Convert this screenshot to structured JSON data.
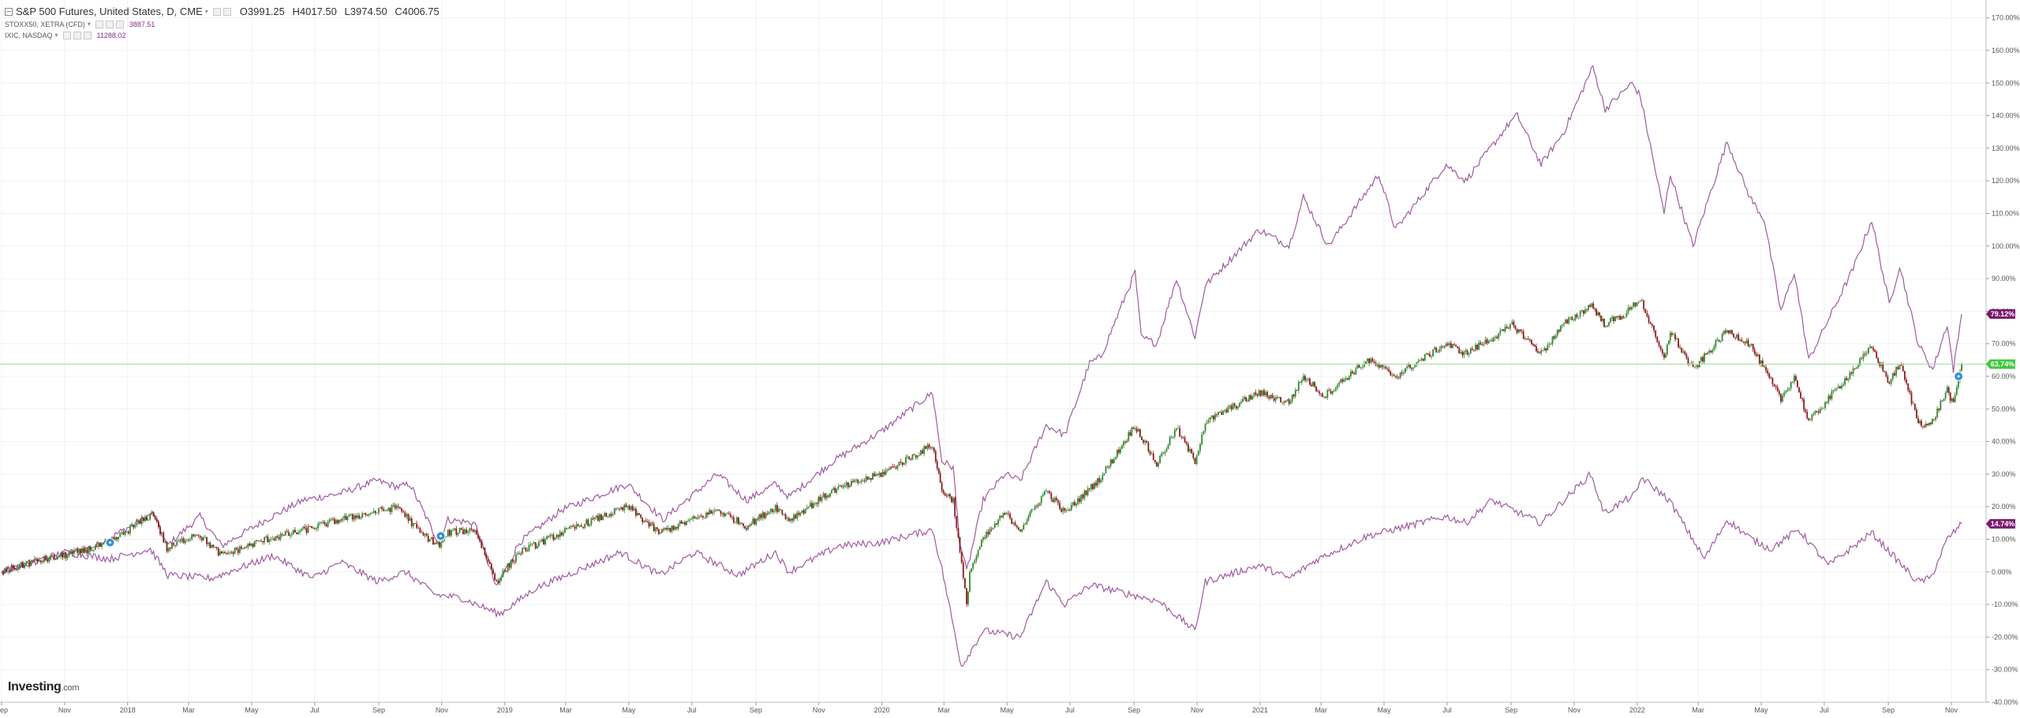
{
  "header": {
    "main_symbol": "S&P 500 Futures, United States, D, CME",
    "open": "O3991.25",
    "high": "H4017.50",
    "low": "L3974.50",
    "close": "C4006.75",
    "compare": [
      {
        "symbol": "STOXX50, XETRA (CFD)",
        "value": "3887.51"
      },
      {
        "symbol": "IXIC, NASDAQ",
        "value": "11288.02"
      }
    ]
  },
  "logo": {
    "brand": "Investing",
    "domain": ".com"
  },
  "colors": {
    "up": "#2f8a2f",
    "down": "#8b1a1a",
    "compare": "#a05aa0",
    "current_line": "#9be29b",
    "badge_sp": "#3fc73f",
    "badge_compare": "#7a1a6e",
    "grid": "#f0f0f0",
    "marker": "#3a8fd6"
  },
  "chart_data": {
    "type": "line",
    "title": "S&P 500 Futures, United States, D, CME",
    "y_axis": {
      "unit": "%",
      "range": [
        -40,
        175
      ],
      "position": "right",
      "ticks": [
        "170.00%",
        "160.00%",
        "150.00%",
        "140.00%",
        "130.00%",
        "120.00%",
        "110.00%",
        "100.00%",
        "90.00%",
        "80.00%",
        "70.00%",
        "60.00%",
        "50.00%",
        "40.00%",
        "30.00%",
        "20.00%",
        "10.00%",
        "0.00%",
        "-10.00%",
        "-20.00%",
        "-30.00%",
        "-40.00%"
      ]
    },
    "x_axis": {
      "range": [
        "2017-09-01",
        "2022-11-14"
      ],
      "ticks": [
        {
          "date": "2017-09-01",
          "label": "Sep"
        },
        {
          "date": "2017-11-01",
          "label": "Nov"
        },
        {
          "date": "2018-01-01",
          "label": "2018"
        },
        {
          "date": "2018-03-01",
          "label": "Mar"
        },
        {
          "date": "2018-05-01",
          "label": "May"
        },
        {
          "date": "2018-07-01",
          "label": "Jul"
        },
        {
          "date": "2018-09-01",
          "label": "Sep"
        },
        {
          "date": "2018-11-01",
          "label": "Nov"
        },
        {
          "date": "2019-01-01",
          "label": "2019"
        },
        {
          "date": "2019-03-01",
          "label": "Mar"
        },
        {
          "date": "2019-05-01",
          "label": "May"
        },
        {
          "date": "2019-07-01",
          "label": "Jul"
        },
        {
          "date": "2019-09-01",
          "label": "Sep"
        },
        {
          "date": "2019-11-01",
          "label": "Nov"
        },
        {
          "date": "2020-01-01",
          "label": "2020"
        },
        {
          "date": "2020-03-01",
          "label": "Mar"
        },
        {
          "date": "2020-05-01",
          "label": "May"
        },
        {
          "date": "2020-07-01",
          "label": "Jul"
        },
        {
          "date": "2020-09-01",
          "label": "Sep"
        },
        {
          "date": "2020-11-01",
          "label": "Nov"
        },
        {
          "date": "2021-01-01",
          "label": "2021"
        },
        {
          "date": "2021-03-01",
          "label": "Mar"
        },
        {
          "date": "2021-05-01",
          "label": "May"
        },
        {
          "date": "2021-07-01",
          "label": "Jul"
        },
        {
          "date": "2021-09-01",
          "label": "Sep"
        },
        {
          "date": "2021-11-01",
          "label": "Nov"
        },
        {
          "date": "2022-01-01",
          "label": "2022"
        },
        {
          "date": "2022-03-01",
          "label": "Mar"
        },
        {
          "date": "2022-05-01",
          "label": "May"
        },
        {
          "date": "2022-07-01",
          "label": "Jul"
        },
        {
          "date": "2022-09-01",
          "label": "Sep"
        },
        {
          "date": "2022-11-01",
          "label": "Nov"
        }
      ]
    },
    "current_value_line": 63.74,
    "badges": [
      {
        "value": 79.12,
        "label": "79.12%",
        "color": "#7a1a6e"
      },
      {
        "value": 63.74,
        "label": "63.74%",
        "color": "#3fc73f"
      },
      {
        "value": 14.74,
        "label": "14.74%",
        "color": "#7a1a6e"
      }
    ],
    "markers": [
      {
        "date": "2017-12-15",
        "value": 9
      },
      {
        "date": "2018-10-31",
        "value": 11
      },
      {
        "date": "2022-11-08",
        "value": 60
      }
    ],
    "series": [
      {
        "name": "S&P 500 Futures",
        "style": "candles",
        "points": [
          [
            "2017-09-01",
            0
          ],
          [
            "2017-10-01",
            3
          ],
          [
            "2017-11-15",
            6
          ],
          [
            "2017-12-15",
            9
          ],
          [
            "2018-01-26",
            18
          ],
          [
            "2018-02-08",
            7
          ],
          [
            "2018-03-09",
            12
          ],
          [
            "2018-04-02",
            5
          ],
          [
            "2018-05-15",
            10
          ],
          [
            "2018-06-12",
            12
          ],
          [
            "2018-07-25",
            16
          ],
          [
            "2018-09-20",
            20
          ],
          [
            "2018-10-11",
            12
          ],
          [
            "2018-10-30",
            8
          ],
          [
            "2018-11-07",
            12
          ],
          [
            "2018-12-03",
            13
          ],
          [
            "2018-12-24",
            -3
          ],
          [
            "2019-01-15",
            6
          ],
          [
            "2019-02-25",
            12
          ],
          [
            "2019-04-30",
            20
          ],
          [
            "2019-05-30",
            12
          ],
          [
            "2019-07-26",
            19
          ],
          [
            "2019-08-23",
            14
          ],
          [
            "2019-09-20",
            20
          ],
          [
            "2019-10-03",
            16
          ],
          [
            "2019-11-15",
            25
          ],
          [
            "2019-12-31",
            30
          ],
          [
            "2020-02-19",
            39
          ],
          [
            "2020-02-28",
            25
          ],
          [
            "2020-03-10",
            22
          ],
          [
            "2020-03-23",
            -10
          ],
          [
            "2020-03-26",
            0
          ],
          [
            "2020-04-08",
            10
          ],
          [
            "2020-04-29",
            18
          ],
          [
            "2020-05-14",
            13
          ],
          [
            "2020-06-08",
            25
          ],
          [
            "2020-06-26",
            18
          ],
          [
            "2020-07-31",
            29
          ],
          [
            "2020-09-02",
            45
          ],
          [
            "2020-09-23",
            33
          ],
          [
            "2020-10-12",
            44
          ],
          [
            "2020-10-30",
            34
          ],
          [
            "2020-11-09",
            46
          ],
          [
            "2020-12-31",
            55
          ],
          [
            "2021-01-29",
            52
          ],
          [
            "2021-02-12",
            60
          ],
          [
            "2021-03-04",
            54
          ],
          [
            "2021-04-15",
            65
          ],
          [
            "2021-05-12",
            60
          ],
          [
            "2021-06-30",
            70
          ],
          [
            "2021-07-19",
            67
          ],
          [
            "2021-08-31",
            75
          ],
          [
            "2021-09-02",
            76
          ],
          [
            "2021-09-30",
            67
          ],
          [
            "2021-10-22",
            76
          ],
          [
            "2021-11-18",
            82
          ],
          [
            "2021-11-30",
            76
          ],
          [
            "2021-12-20",
            79
          ],
          [
            "2022-01-04",
            84
          ],
          [
            "2022-01-27",
            65
          ],
          [
            "2022-02-02",
            74
          ],
          [
            "2022-02-24",
            62
          ],
          [
            "2022-03-29",
            74
          ],
          [
            "2022-04-20",
            70
          ],
          [
            "2022-05-04",
            62
          ],
          [
            "2022-05-20",
            53
          ],
          [
            "2022-06-02",
            60
          ],
          [
            "2022-06-16",
            46
          ],
          [
            "2022-07-29",
            62
          ],
          [
            "2022-08-16",
            69
          ],
          [
            "2022-09-02",
            58
          ],
          [
            "2022-09-12",
            64
          ],
          [
            "2022-09-30",
            46
          ],
          [
            "2022-10-12",
            45
          ],
          [
            "2022-10-28",
            56
          ],
          [
            "2022-11-03",
            51
          ],
          [
            "2022-11-11",
            63.74
          ]
        ]
      },
      {
        "name": "IXIC, NASDAQ",
        "style": "line",
        "points": [
          [
            "2017-09-01",
            0
          ],
          [
            "2017-10-15",
            4
          ],
          [
            "2017-12-01",
            8
          ],
          [
            "2018-01-26",
            18
          ],
          [
            "2018-02-08",
            8
          ],
          [
            "2018-03-12",
            17
          ],
          [
            "2018-04-02",
            8
          ],
          [
            "2018-05-15",
            16
          ],
          [
            "2018-06-20",
            22
          ],
          [
            "2018-07-25",
            24
          ],
          [
            "2018-08-30",
            28
          ],
          [
            "2018-09-20",
            26
          ],
          [
            "2018-10-01",
            27
          ],
          [
            "2018-10-29",
            9
          ],
          [
            "2018-11-07",
            16
          ],
          [
            "2018-12-03",
            15
          ],
          [
            "2018-12-24",
            -5
          ],
          [
            "2019-01-15",
            9
          ],
          [
            "2019-02-25",
            19
          ],
          [
            "2019-04-30",
            27
          ],
          [
            "2019-06-03",
            16
          ],
          [
            "2019-07-26",
            30
          ],
          [
            "2019-08-23",
            22
          ],
          [
            "2019-09-20",
            27
          ],
          [
            "2019-10-03",
            23
          ],
          [
            "2019-11-15",
            34
          ],
          [
            "2019-12-31",
            43
          ],
          [
            "2020-02-19",
            55
          ],
          [
            "2020-02-28",
            34
          ],
          [
            "2020-03-10",
            32
          ],
          [
            "2020-03-16",
            10
          ],
          [
            "2020-03-23",
            0
          ],
          [
            "2020-03-31",
            11
          ],
          [
            "2020-04-08",
            22
          ],
          [
            "2020-04-29",
            30
          ],
          [
            "2020-05-14",
            28
          ],
          [
            "2020-06-08",
            45
          ],
          [
            "2020-06-26",
            42
          ],
          [
            "2020-07-20",
            64
          ],
          [
            "2020-07-31",
            66
          ],
          [
            "2020-09-02",
            92
          ],
          [
            "2020-09-08",
            72
          ],
          [
            "2020-09-23",
            70
          ],
          [
            "2020-10-12",
            90
          ],
          [
            "2020-10-30",
            72
          ],
          [
            "2020-11-09",
            88
          ],
          [
            "2020-12-31",
            105
          ],
          [
            "2021-01-29",
            100
          ],
          [
            "2021-02-12",
            115
          ],
          [
            "2021-03-08",
            100
          ],
          [
            "2021-04-26",
            122
          ],
          [
            "2021-05-12",
            105
          ],
          [
            "2021-06-30",
            125
          ],
          [
            "2021-07-19",
            120
          ],
          [
            "2021-08-31",
            138
          ],
          [
            "2021-09-07",
            140
          ],
          [
            "2021-09-30",
            125
          ],
          [
            "2021-10-22",
            135
          ],
          [
            "2021-11-19",
            155
          ],
          [
            "2021-12-01",
            142
          ],
          [
            "2021-12-27",
            150
          ],
          [
            "2022-01-04",
            146
          ],
          [
            "2022-01-27",
            110
          ],
          [
            "2022-02-02",
            122
          ],
          [
            "2022-02-24",
            100
          ],
          [
            "2022-03-29",
            132
          ],
          [
            "2022-04-20",
            115
          ],
          [
            "2022-05-04",
            108
          ],
          [
            "2022-05-20",
            80
          ],
          [
            "2022-06-02",
            92
          ],
          [
            "2022-06-16",
            65
          ],
          [
            "2022-07-29",
            93
          ],
          [
            "2022-08-16",
            108
          ],
          [
            "2022-09-02",
            82
          ],
          [
            "2022-09-12",
            94
          ],
          [
            "2022-09-30",
            70
          ],
          [
            "2022-10-14",
            62
          ],
          [
            "2022-10-28",
            76
          ],
          [
            "2022-11-03",
            62
          ],
          [
            "2022-11-11",
            79.12
          ]
        ]
      },
      {
        "name": "STOXX50, XETRA (CFD)",
        "style": "line",
        "points": [
          [
            "2017-09-01",
            0
          ],
          [
            "2017-10-01",
            3
          ],
          [
            "2017-11-01",
            6
          ],
          [
            "2017-12-15",
            4
          ],
          [
            "2018-01-23",
            7
          ],
          [
            "2018-02-09",
            -1
          ],
          [
            "2018-03-23",
            -2
          ],
          [
            "2018-05-22",
            5
          ],
          [
            "2018-06-29",
            -2
          ],
          [
            "2018-07-26",
            3
          ],
          [
            "2018-08-31",
            -3
          ],
          [
            "2018-09-27",
            0
          ],
          [
            "2018-10-26",
            -7
          ],
          [
            "2018-11-20",
            -8
          ],
          [
            "2018-12-27",
            -13
          ],
          [
            "2019-01-31",
            -5
          ],
          [
            "2019-04-23",
            6
          ],
          [
            "2019-05-31",
            -1
          ],
          [
            "2019-07-04",
            6
          ],
          [
            "2019-08-15",
            -1
          ],
          [
            "2019-09-20",
            6
          ],
          [
            "2019-10-03",
            0
          ],
          [
            "2019-11-20",
            8
          ],
          [
            "2019-12-31",
            9
          ],
          [
            "2020-02-19",
            13
          ],
          [
            "2020-02-28",
            1
          ],
          [
            "2020-03-18",
            -29
          ],
          [
            "2020-04-08",
            -18
          ],
          [
            "2020-05-14",
            -20
          ],
          [
            "2020-06-08",
            -3
          ],
          [
            "2020-06-26",
            -10
          ],
          [
            "2020-07-21",
            -4
          ],
          [
            "2020-09-25",
            -9
          ],
          [
            "2020-10-30",
            -18
          ],
          [
            "2020-11-09",
            -3
          ],
          [
            "2020-12-31",
            2
          ],
          [
            "2021-01-29",
            -2
          ],
          [
            "2021-02-26",
            4
          ],
          [
            "2021-04-15",
            11
          ],
          [
            "2021-06-30",
            17
          ],
          [
            "2021-07-19",
            15
          ],
          [
            "2021-08-13",
            22
          ],
          [
            "2021-09-30",
            15
          ],
          [
            "2021-10-22",
            22
          ],
          [
            "2021-11-17",
            30
          ],
          [
            "2021-11-30",
            18
          ],
          [
            "2021-12-31",
            24
          ],
          [
            "2022-01-05",
            29
          ],
          [
            "2022-02-01",
            22
          ],
          [
            "2022-03-07",
            4
          ],
          [
            "2022-03-29",
            16
          ],
          [
            "2022-04-22",
            10
          ],
          [
            "2022-05-10",
            7
          ],
          [
            "2022-06-06",
            13
          ],
          [
            "2022-07-05",
            2
          ],
          [
            "2022-08-16",
            12
          ],
          [
            "2022-09-29",
            -3
          ],
          [
            "2022-10-12",
            -2
          ],
          [
            "2022-10-28",
            10
          ],
          [
            "2022-11-11",
            14.74
          ]
        ]
      }
    ]
  }
}
